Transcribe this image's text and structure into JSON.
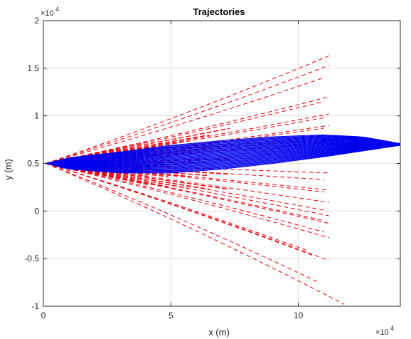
{
  "chart_data": {
    "type": "line",
    "title": "Trajectories",
    "xlabel": "x (m)",
    "ylabel": "y (m)",
    "x_exponent_label": "×10",
    "x_exponent_power": "4",
    "y_exponent_label": "×10",
    "y_exponent_power": "4",
    "xlim": [
      0,
      14
    ],
    "ylim": [
      -1,
      2
    ],
    "xticks": [
      0,
      5,
      10
    ],
    "xtick_labels": [
      "0",
      "5",
      "10"
    ],
    "yticks": [
      -1,
      -0.5,
      0,
      0.5,
      1,
      1.5,
      2
    ],
    "ytick_labels": [
      "-1",
      "-0.5",
      "0",
      "0.5",
      "1",
      "1.5",
      "2"
    ],
    "grid": true,
    "scale_note": "axis values are in units of 10^4 m",
    "origin": [
      0.1,
      0.5
    ],
    "series": [
      {
        "style": "dashed",
        "color": "#e8000b",
        "endpoints": [
          [
            11.2,
            1.63
          ],
          [
            11.2,
            1.53
          ],
          [
            11.0,
            1.4
          ],
          [
            11.2,
            1.2
          ],
          [
            11.0,
            1.15
          ],
          [
            11.2,
            1.02
          ],
          [
            11.0,
            0.98
          ],
          [
            11.2,
            0.9
          ],
          [
            11.0,
            0.87
          ],
          [
            11.2,
            0.8
          ],
          [
            11.0,
            0.76
          ],
          [
            11.2,
            0.72
          ],
          [
            11.2,
            0.4
          ],
          [
            11.0,
            0.33
          ],
          [
            11.2,
            0.22
          ],
          [
            11.0,
            0.2
          ],
          [
            11.2,
            0.09
          ],
          [
            11.0,
            0.01
          ],
          [
            11.2,
            -0.05
          ],
          [
            11.0,
            -0.1
          ],
          [
            11.2,
            -0.13
          ],
          [
            11.0,
            -0.22
          ],
          [
            11.2,
            -0.28
          ],
          [
            10.6,
            -0.47
          ],
          [
            10.4,
            -0.42
          ],
          [
            11.2,
            -0.52
          ],
          [
            10.8,
            -0.75
          ],
          [
            11.8,
            -0.98
          ]
        ]
      },
      {
        "style": "solid",
        "color": "#0000ee",
        "tip": [
          14.0,
          0.7
        ],
        "upper_envelope": [
          [
            1.0,
            0.56
          ],
          [
            3.0,
            0.62
          ],
          [
            5.0,
            0.69
          ],
          [
            7.0,
            0.74
          ],
          [
            9.0,
            0.78
          ],
          [
            11.0,
            0.8
          ],
          [
            12.5,
            0.78
          ],
          [
            14.0,
            0.71
          ]
        ],
        "lower_envelope": [
          [
            1.0,
            0.44
          ],
          [
            3.0,
            0.4
          ],
          [
            5.0,
            0.4
          ],
          [
            7.0,
            0.44
          ],
          [
            9.0,
            0.5
          ],
          [
            11.0,
            0.57
          ],
          [
            12.5,
            0.63
          ],
          [
            14.0,
            0.69
          ]
        ]
      }
    ]
  }
}
